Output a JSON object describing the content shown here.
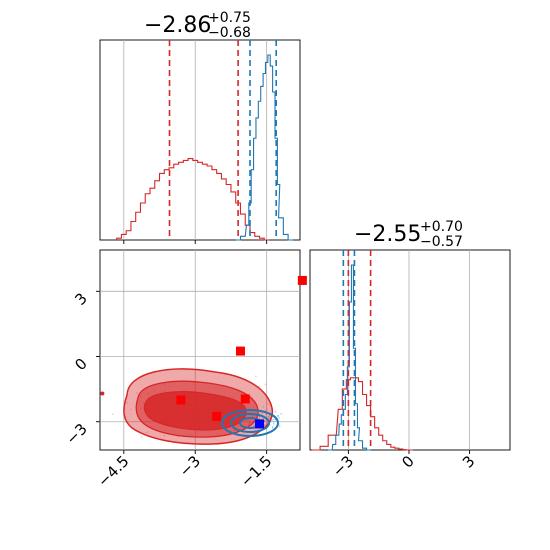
{
  "chart_data": {
    "type": "corner",
    "colors": {
      "red_series": "#d62728",
      "blue_series": "#1f77b4",
      "red_marker": "#ff0000",
      "blue_marker": "#0000ff",
      "grid": "#b0b0b0"
    },
    "grid": true,
    "panels": {
      "param1_hist": {
        "type": "histogram",
        "title": {
          "main": "−2.86",
          "sup": "+0.75",
          "sub": "−0.68"
        },
        "xlim": [
          -5.0,
          -0.8
        ],
        "xticks": [
          -4.5,
          -3.0,
          -1.5
        ],
        "red_quantile_lines": [
          -3.54,
          -2.1
        ],
        "blue_quantile_lines": [
          -1.85,
          -1.3
        ],
        "series_red_centers": [
          -4.6,
          -4.5,
          -4.4,
          -4.3,
          -4.2,
          -4.1,
          -4.0,
          -3.9,
          -3.8,
          -3.7,
          -3.6,
          -3.5,
          -3.4,
          -3.3,
          -3.2,
          -3.1,
          -3.0,
          -2.9,
          -2.8,
          -2.7,
          -2.6,
          -2.5,
          -2.4,
          -2.3,
          -2.2,
          -2.1,
          -2.0,
          -1.9,
          -1.8,
          -1.7,
          -1.6,
          -1.5
        ],
        "series_red_values": [
          0.01,
          0.03,
          0.05,
          0.1,
          0.15,
          0.2,
          0.25,
          0.28,
          0.32,
          0.36,
          0.38,
          0.39,
          0.41,
          0.42,
          0.43,
          0.44,
          0.43,
          0.42,
          0.41,
          0.4,
          0.38,
          0.36,
          0.33,
          0.3,
          0.26,
          0.2,
          0.14,
          0.08,
          0.04,
          0.02,
          0.01,
          0.0
        ],
        "series_blue_centers": [
          -2.1,
          -2.0,
          -1.9,
          -1.85,
          -1.8,
          -1.75,
          -1.7,
          -1.65,
          -1.6,
          -1.55,
          -1.5,
          -1.45,
          -1.4,
          -1.35,
          -1.3,
          -1.25,
          -1.2,
          -1.1,
          -1.0
        ],
        "series_blue_values": [
          0.0,
          0.02,
          0.08,
          0.2,
          0.38,
          0.55,
          0.66,
          0.75,
          0.83,
          0.9,
          0.96,
          1.0,
          0.94,
          0.8,
          0.55,
          0.3,
          0.12,
          0.03,
          0.0
        ]
      },
      "joint": {
        "type": "contour_scatter",
        "xlim": [
          -5.0,
          -0.8
        ],
        "ylim": [
          -4.3,
          4.9
        ],
        "xticks": [
          -4.5,
          -3.0,
          -1.5
        ],
        "yticks": [
          -3,
          0,
          3
        ],
        "red_markers": [
          [
            -3.3,
            -2.0
          ],
          [
            -2.05,
            0.25
          ],
          [
            -1.95,
            -1.95
          ],
          [
            -2.55,
            -2.75
          ],
          [
            -0.75,
            3.5
          ]
        ],
        "blue_markers": [
          [
            -1.65,
            -3.1
          ]
        ]
      },
      "param2_hist": {
        "type": "histogram",
        "title": {
          "main": "−2.55",
          "sup": "+0.70",
          "sub": "−0.57"
        },
        "xlim": [
          -4.9,
          5.0
        ],
        "xticks": [
          -3,
          0,
          3
        ],
        "red_quantile_lines": [
          -3.0,
          -1.9
        ],
        "blue_quantile_lines": [
          -3.25,
          -2.7
        ],
        "series_red_centers": [
          -4.6,
          -4.2,
          -3.8,
          -3.4,
          -3.2,
          -3.0,
          -2.8,
          -2.6,
          -2.4,
          -2.2,
          -2.0,
          -1.8,
          -1.6,
          -1.4,
          -1.2,
          -1.0,
          -0.8,
          -0.6,
          -0.4,
          -0.2,
          0.0
        ],
        "series_red_values": [
          0.0,
          0.02,
          0.08,
          0.22,
          0.33,
          0.38,
          0.39,
          0.39,
          0.37,
          0.3,
          0.24,
          0.18,
          0.12,
          0.08,
          0.05,
          0.03,
          0.015,
          0.01,
          0.005,
          0.002,
          0.0
        ],
        "series_blue_centers": [
          -3.9,
          -3.7,
          -3.55,
          -3.4,
          -3.3,
          -3.2,
          -3.1,
          -3.0,
          -2.9,
          -2.8,
          -2.7,
          -2.6,
          -2.5,
          -2.4,
          -2.2,
          -2.0
        ],
        "series_blue_values": [
          0.0,
          0.03,
          0.08,
          0.14,
          0.19,
          0.22,
          0.3,
          0.45,
          0.8,
          1.0,
          0.55,
          0.25,
          0.12,
          0.05,
          0.01,
          0.0
        ]
      }
    }
  }
}
